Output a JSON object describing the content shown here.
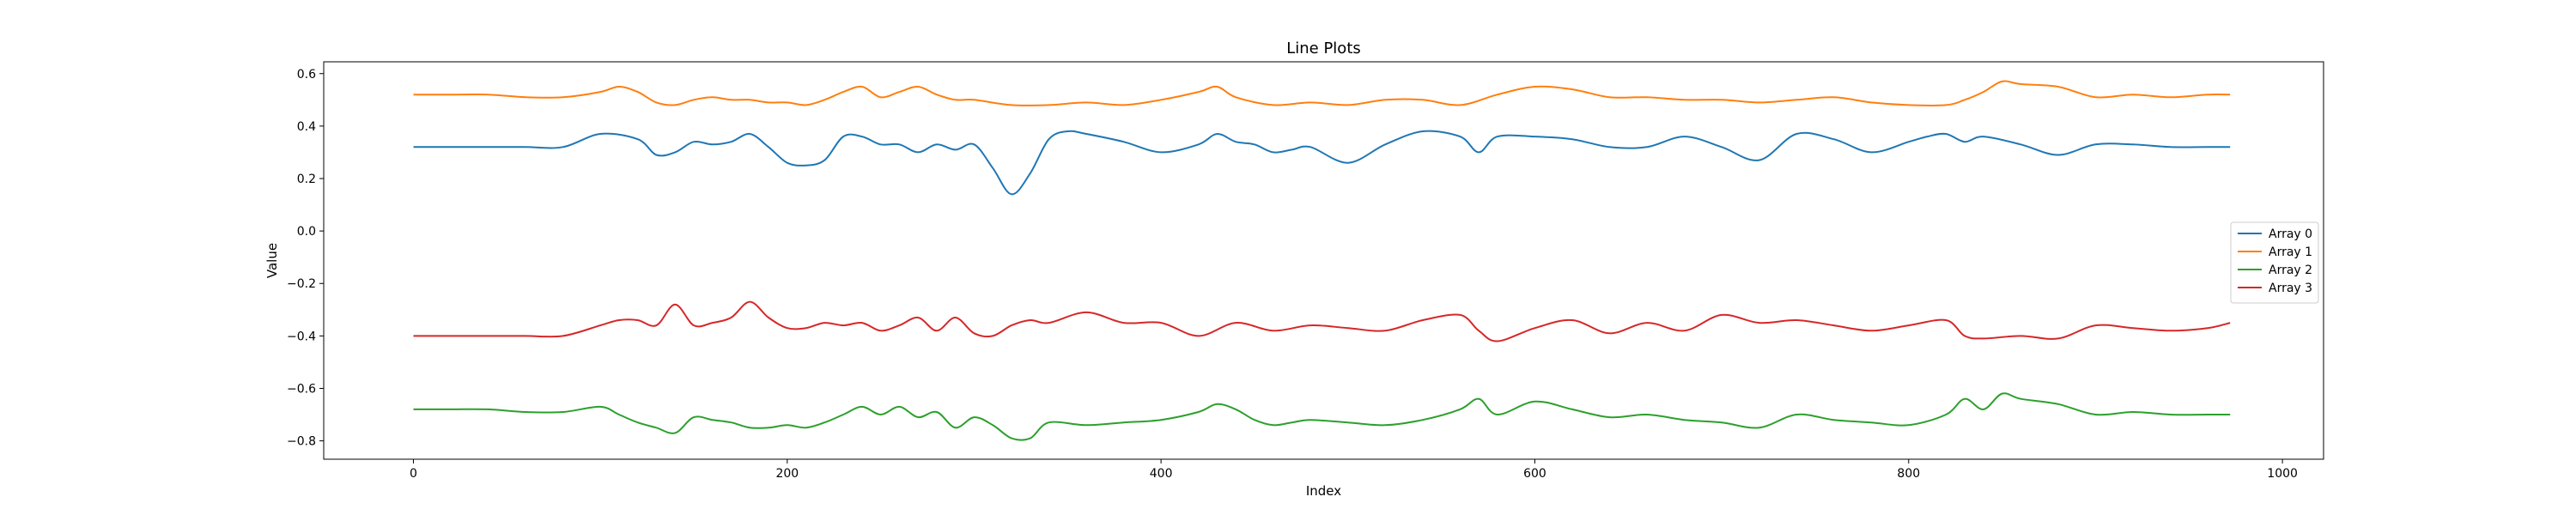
{
  "chart_data": {
    "type": "line",
    "title": "Line Plots",
    "xlabel": "Index",
    "ylabel": "Value",
    "xlim": [
      -48,
      1022
    ],
    "ylim": [
      -0.87,
      0.645
    ],
    "xticks": [
      0,
      200,
      400,
      600,
      800,
      1000
    ],
    "yticks": [
      -0.8,
      -0.6,
      -0.4,
      -0.2,
      0.0,
      0.2,
      0.4,
      0.6
    ],
    "xtick_labels": [
      "0",
      "200",
      "400",
      "600",
      "800",
      "1000"
    ],
    "ytick_labels": [
      "−0.8",
      "−0.6",
      "−0.4",
      "−0.2",
      "0.0",
      "0.2",
      "0.4",
      "0.6"
    ],
    "grid": false,
    "legend_position": "center-right",
    "series": [
      {
        "name": "Array 0",
        "color": "#1f77b4",
        "x": [
          0,
          20,
          40,
          60,
          80,
          100,
          120,
          130,
          140,
          150,
          160,
          170,
          180,
          190,
          200,
          210,
          220,
          230,
          240,
          250,
          260,
          270,
          280,
          290,
          300,
          310,
          320,
          330,
          340,
          350,
          360,
          380,
          400,
          420,
          430,
          440,
          450,
          460,
          470,
          480,
          500,
          520,
          540,
          560,
          570,
          580,
          600,
          620,
          640,
          660,
          680,
          700,
          720,
          740,
          760,
          780,
          800,
          810,
          820,
          830,
          840,
          860,
          880,
          900,
          920,
          940,
          960,
          972
        ],
        "y": [
          0.32,
          0.32,
          0.32,
          0.32,
          0.32,
          0.37,
          0.35,
          0.29,
          0.3,
          0.34,
          0.33,
          0.34,
          0.37,
          0.32,
          0.26,
          0.25,
          0.27,
          0.36,
          0.36,
          0.33,
          0.33,
          0.3,
          0.33,
          0.31,
          0.33,
          0.24,
          0.14,
          0.22,
          0.35,
          0.38,
          0.37,
          0.34,
          0.3,
          0.33,
          0.37,
          0.34,
          0.33,
          0.3,
          0.31,
          0.32,
          0.26,
          0.33,
          0.38,
          0.36,
          0.3,
          0.36,
          0.36,
          0.35,
          0.32,
          0.32,
          0.36,
          0.32,
          0.27,
          0.37,
          0.35,
          0.3,
          0.34,
          0.36,
          0.37,
          0.34,
          0.36,
          0.33,
          0.29,
          0.33,
          0.33,
          0.32,
          0.32,
          0.32
        ]
      },
      {
        "name": "Array 1",
        "color": "#ff7f0e",
        "x": [
          0,
          20,
          40,
          60,
          80,
          100,
          110,
          120,
          130,
          140,
          150,
          160,
          170,
          180,
          190,
          200,
          210,
          220,
          230,
          240,
          250,
          260,
          270,
          280,
          290,
          300,
          320,
          340,
          360,
          380,
          400,
          420,
          430,
          440,
          460,
          480,
          500,
          520,
          540,
          560,
          580,
          600,
          620,
          640,
          660,
          680,
          700,
          720,
          740,
          760,
          780,
          800,
          820,
          830,
          840,
          850,
          860,
          880,
          900,
          920,
          940,
          960,
          972
        ],
        "y": [
          0.52,
          0.52,
          0.52,
          0.51,
          0.51,
          0.53,
          0.55,
          0.53,
          0.49,
          0.48,
          0.5,
          0.51,
          0.5,
          0.5,
          0.49,
          0.49,
          0.48,
          0.5,
          0.53,
          0.55,
          0.51,
          0.53,
          0.55,
          0.52,
          0.5,
          0.5,
          0.48,
          0.48,
          0.49,
          0.48,
          0.5,
          0.53,
          0.55,
          0.51,
          0.48,
          0.49,
          0.48,
          0.5,
          0.5,
          0.48,
          0.52,
          0.55,
          0.54,
          0.51,
          0.51,
          0.5,
          0.5,
          0.49,
          0.5,
          0.51,
          0.49,
          0.48,
          0.48,
          0.5,
          0.53,
          0.57,
          0.56,
          0.55,
          0.51,
          0.52,
          0.51,
          0.52,
          0.52
        ]
      },
      {
        "name": "Array 2",
        "color": "#2ca02c",
        "x": [
          0,
          20,
          40,
          60,
          80,
          100,
          110,
          120,
          130,
          140,
          150,
          160,
          170,
          180,
          190,
          200,
          210,
          220,
          230,
          240,
          250,
          260,
          270,
          280,
          290,
          300,
          310,
          320,
          330,
          340,
          360,
          380,
          400,
          420,
          430,
          440,
          450,
          460,
          470,
          480,
          500,
          520,
          540,
          560,
          570,
          580,
          600,
          620,
          640,
          660,
          680,
          700,
          720,
          740,
          760,
          780,
          800,
          820,
          830,
          840,
          850,
          860,
          880,
          900,
          920,
          940,
          960,
          972
        ],
        "y": [
          -0.68,
          -0.68,
          -0.68,
          -0.69,
          -0.69,
          -0.67,
          -0.7,
          -0.73,
          -0.75,
          -0.77,
          -0.71,
          -0.72,
          -0.73,
          -0.75,
          -0.75,
          -0.74,
          -0.75,
          -0.73,
          -0.7,
          -0.67,
          -0.7,
          -0.67,
          -0.71,
          -0.69,
          -0.75,
          -0.71,
          -0.74,
          -0.79,
          -0.79,
          -0.73,
          -0.74,
          -0.73,
          -0.72,
          -0.69,
          -0.66,
          -0.68,
          -0.72,
          -0.74,
          -0.73,
          -0.72,
          -0.73,
          -0.74,
          -0.72,
          -0.68,
          -0.64,
          -0.7,
          -0.65,
          -0.68,
          -0.71,
          -0.7,
          -0.72,
          -0.73,
          -0.75,
          -0.7,
          -0.72,
          -0.73,
          -0.74,
          -0.7,
          -0.64,
          -0.68,
          -0.62,
          -0.64,
          -0.66,
          -0.7,
          -0.69,
          -0.7,
          -0.7,
          -0.7
        ]
      },
      {
        "name": "Array 3",
        "color": "#d62728",
        "x": [
          0,
          20,
          40,
          60,
          80,
          100,
          110,
          120,
          130,
          140,
          150,
          160,
          170,
          180,
          190,
          200,
          210,
          220,
          230,
          240,
          250,
          260,
          270,
          280,
          290,
          300,
          310,
          320,
          330,
          340,
          360,
          380,
          400,
          420,
          440,
          460,
          480,
          500,
          520,
          540,
          560,
          570,
          580,
          600,
          620,
          640,
          660,
          680,
          700,
          720,
          740,
          760,
          780,
          800,
          820,
          830,
          840,
          860,
          880,
          900,
          920,
          940,
          960,
          972
        ],
        "y": [
          -0.4,
          -0.4,
          -0.4,
          -0.4,
          -0.4,
          -0.36,
          -0.34,
          -0.34,
          -0.36,
          -0.28,
          -0.36,
          -0.35,
          -0.33,
          -0.27,
          -0.33,
          -0.37,
          -0.37,
          -0.35,
          -0.36,
          -0.35,
          -0.38,
          -0.36,
          -0.33,
          -0.38,
          -0.33,
          -0.39,
          -0.4,
          -0.36,
          -0.34,
          -0.35,
          -0.31,
          -0.35,
          -0.35,
          -0.4,
          -0.35,
          -0.38,
          -0.36,
          -0.37,
          -0.38,
          -0.34,
          -0.32,
          -0.38,
          -0.42,
          -0.37,
          -0.34,
          -0.39,
          -0.35,
          -0.38,
          -0.32,
          -0.35,
          -0.34,
          -0.36,
          -0.38,
          -0.36,
          -0.34,
          -0.4,
          -0.41,
          -0.4,
          -0.41,
          -0.36,
          -0.37,
          -0.38,
          -0.37,
          -0.35
        ]
      }
    ]
  }
}
